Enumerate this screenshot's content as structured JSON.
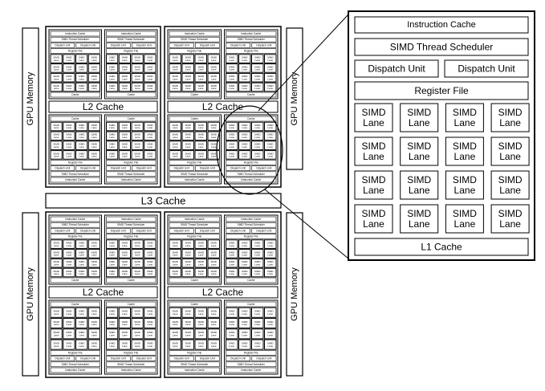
{
  "labels": {
    "gpu_memory": "GPU Memory",
    "l2_cache": "L2 Cache",
    "l3_cache": "L3 Cache",
    "instruction_cache": "Instruction Cache",
    "simd_thread_scheduler": "SIMD Thread Scheduler",
    "dispatch_unit": "Dispatch Unit",
    "register_file": "Register File",
    "simd": "SIMD",
    "lane": "Lane",
    "l1_cache": "L1 Cache",
    "cache": "Cache"
  },
  "zoom": {
    "lane_rows": 4,
    "lane_cols": 4
  },
  "colors": {
    "line": "#000000",
    "background": "#ffffff"
  }
}
